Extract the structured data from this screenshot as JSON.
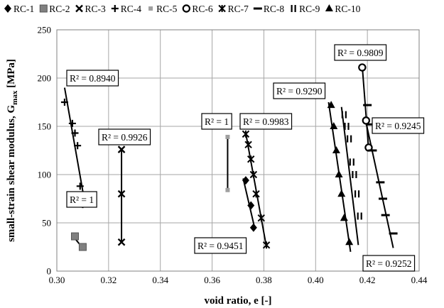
{
  "chart_data": {
    "type": "scatter",
    "xlabel": "void ratio, e [-]",
    "ylabel": "small-strain shear modulus, G",
    "ylabel_sub": "max",
    "ylabel_unit": " [MPa]",
    "xlim": [
      0.3,
      0.44
    ],
    "ylim": [
      0,
      250
    ],
    "x_ticks": [
      0.3,
      0.32,
      0.34,
      0.36,
      0.38,
      0.4,
      0.42,
      0.44
    ],
    "x_tick_labels": [
      "0.30",
      "0.32",
      "0.34",
      "0.36",
      "0.38",
      "0.40",
      "0.42",
      "0.44"
    ],
    "y_ticks": [
      0,
      50,
      100,
      150,
      200,
      250
    ],
    "y_tick_labels": [
      "0",
      "50",
      "100",
      "150",
      "200",
      "250"
    ],
    "grid": true,
    "legend_position": "top",
    "series": [
      {
        "name": "RC-1",
        "marker": "diamond",
        "color": "#000000",
        "points": [
          [
            0.373,
            94
          ],
          [
            0.375,
            68
          ],
          [
            0.376,
            45
          ]
        ],
        "trend": [
          [
            0.372,
            96
          ],
          [
            0.3765,
            44
          ]
        ]
      },
      {
        "name": "RC-2",
        "marker": "square",
        "color": "#808080",
        "points": [
          [
            0.307,
            36
          ],
          [
            0.31,
            25
          ]
        ],
        "trend": [
          [
            0.306,
            37
          ],
          [
            0.31,
            24
          ]
        ]
      },
      {
        "name": "RC-3",
        "marker": "x",
        "color": "#000000",
        "points": [
          [
            0.325,
            126
          ],
          [
            0.325,
            80
          ],
          [
            0.325,
            30
          ]
        ],
        "trend": [
          [
            0.325,
            127
          ],
          [
            0.325,
            29
          ]
        ]
      },
      {
        "name": "RC-4",
        "marker": "plus",
        "color": "#000000",
        "points": [
          [
            0.303,
            175
          ],
          [
            0.306,
            153
          ],
          [
            0.307,
            143
          ],
          [
            0.308,
            130
          ],
          [
            0.309,
            88
          ],
          [
            0.31,
            69
          ]
        ],
        "trend": [
          [
            0.303,
            190
          ],
          [
            0.311,
            68
          ]
        ]
      },
      {
        "name": "RC-5",
        "marker": "smallsquare",
        "color": "#a0a0a0",
        "points": [
          [
            0.366,
            139
          ],
          [
            0.366,
            84
          ]
        ],
        "trend": [
          [
            0.366,
            141
          ],
          [
            0.366,
            82
          ]
        ]
      },
      {
        "name": "RC-6",
        "marker": "circle",
        "color": "#000000",
        "points": [
          [
            0.418,
            211
          ],
          [
            0.4195,
            156
          ],
          [
            0.4205,
            128
          ]
        ],
        "trend": [
          [
            0.418,
            213
          ],
          [
            0.4205,
            126
          ]
        ]
      },
      {
        "name": "RC-7",
        "marker": "asterisk",
        "color": "#000000",
        "points": [
          [
            0.373,
            142
          ],
          [
            0.374,
            131
          ],
          [
            0.375,
            116
          ],
          [
            0.376,
            100
          ],
          [
            0.377,
            80
          ],
          [
            0.379,
            55
          ],
          [
            0.381,
            27
          ]
        ],
        "trend": [
          [
            0.373,
            143
          ],
          [
            0.381,
            25
          ]
        ]
      },
      {
        "name": "RC-8",
        "marker": "dash",
        "color": "#000000",
        "points": [
          [
            0.42,
            172
          ],
          [
            0.421,
            152
          ],
          [
            0.422,
            125
          ],
          [
            0.425,
            92
          ],
          [
            0.426,
            75
          ],
          [
            0.427,
            58
          ],
          [
            0.43,
            39
          ]
        ],
        "trend": [
          [
            0.419,
            160
          ],
          [
            0.43,
            24
          ]
        ]
      },
      {
        "name": "RC-9",
        "marker": "vbars",
        "color": "#000000",
        "points": [
          [
            0.411,
            162
          ],
          [
            0.412,
            150
          ],
          [
            0.413,
            137
          ],
          [
            0.414,
            113
          ],
          [
            0.415,
            100
          ],
          [
            0.416,
            80
          ],
          [
            0.417,
            57
          ]
        ],
        "trend": [
          [
            0.41,
            170
          ],
          [
            0.4165,
            27
          ]
        ]
      },
      {
        "name": "RC-10",
        "marker": "triangle",
        "color": "#000000",
        "points": [
          [
            0.406,
            172
          ],
          [
            0.407,
            150
          ],
          [
            0.408,
            125
          ],
          [
            0.409,
            100
          ],
          [
            0.41,
            80
          ],
          [
            0.411,
            55
          ],
          [
            0.413,
            30
          ]
        ],
        "trend": [
          [
            0.405,
            175
          ],
          [
            0.4135,
            20
          ]
        ]
      }
    ],
    "annotations": [
      {
        "text": "R² = 0.8940",
        "series": "RC-4"
      },
      {
        "text": "R² = 0.9926",
        "series": "RC-3"
      },
      {
        "text": "R² = 1",
        "series": "RC-2"
      },
      {
        "text": "R² = 1",
        "series": "RC-5"
      },
      {
        "text": "R² = 0.9983",
        "series": "RC-7"
      },
      {
        "text": "R² = 0.9451",
        "series": "RC-1"
      },
      {
        "text": "R² = 0.9290",
        "series": "RC-10"
      },
      {
        "text": "R² = 0.9809",
        "series": "RC-6"
      },
      {
        "text": "R² = 0.9245",
        "series": "RC-8"
      },
      {
        "text": "R² = 0.9252",
        "series": "RC-9"
      }
    ]
  }
}
